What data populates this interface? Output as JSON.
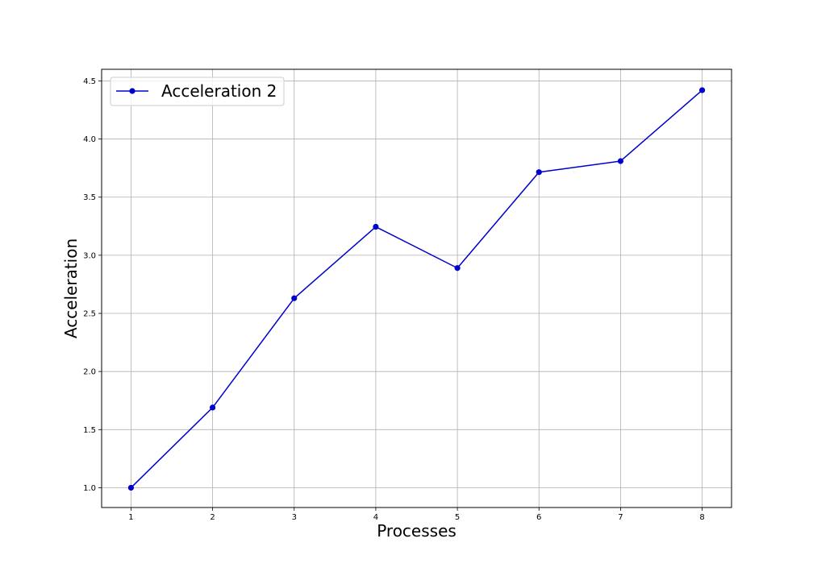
{
  "chart_data": {
    "type": "line",
    "x": [
      1,
      2,
      3,
      4,
      5,
      6,
      7,
      8
    ],
    "series": [
      {
        "name": "Acceleration 2",
        "values": [
          1.0,
          1.69,
          2.63,
          3.245,
          2.89,
          3.715,
          3.81,
          4.42
        ],
        "color": "#0000cd"
      }
    ],
    "xlabel": "Processes",
    "ylabel": "Acceleration",
    "xlim": [
      0.64,
      8.36
    ],
    "ylim": [
      0.83,
      4.6
    ],
    "xticks": [
      1,
      2,
      3,
      4,
      5,
      6,
      7,
      8
    ],
    "xtick_labels": [
      "1",
      "2",
      "3",
      "4",
      "5",
      "6",
      "7",
      "8"
    ],
    "yticks": [
      1.0,
      1.5,
      2.0,
      2.5,
      3.0,
      3.5,
      4.0,
      4.5
    ],
    "ytick_labels": [
      "1.0",
      "1.5",
      "2.0",
      "2.5",
      "3.0",
      "3.5",
      "4.0",
      "4.5"
    ],
    "grid": true,
    "legend_position": "top-left"
  }
}
